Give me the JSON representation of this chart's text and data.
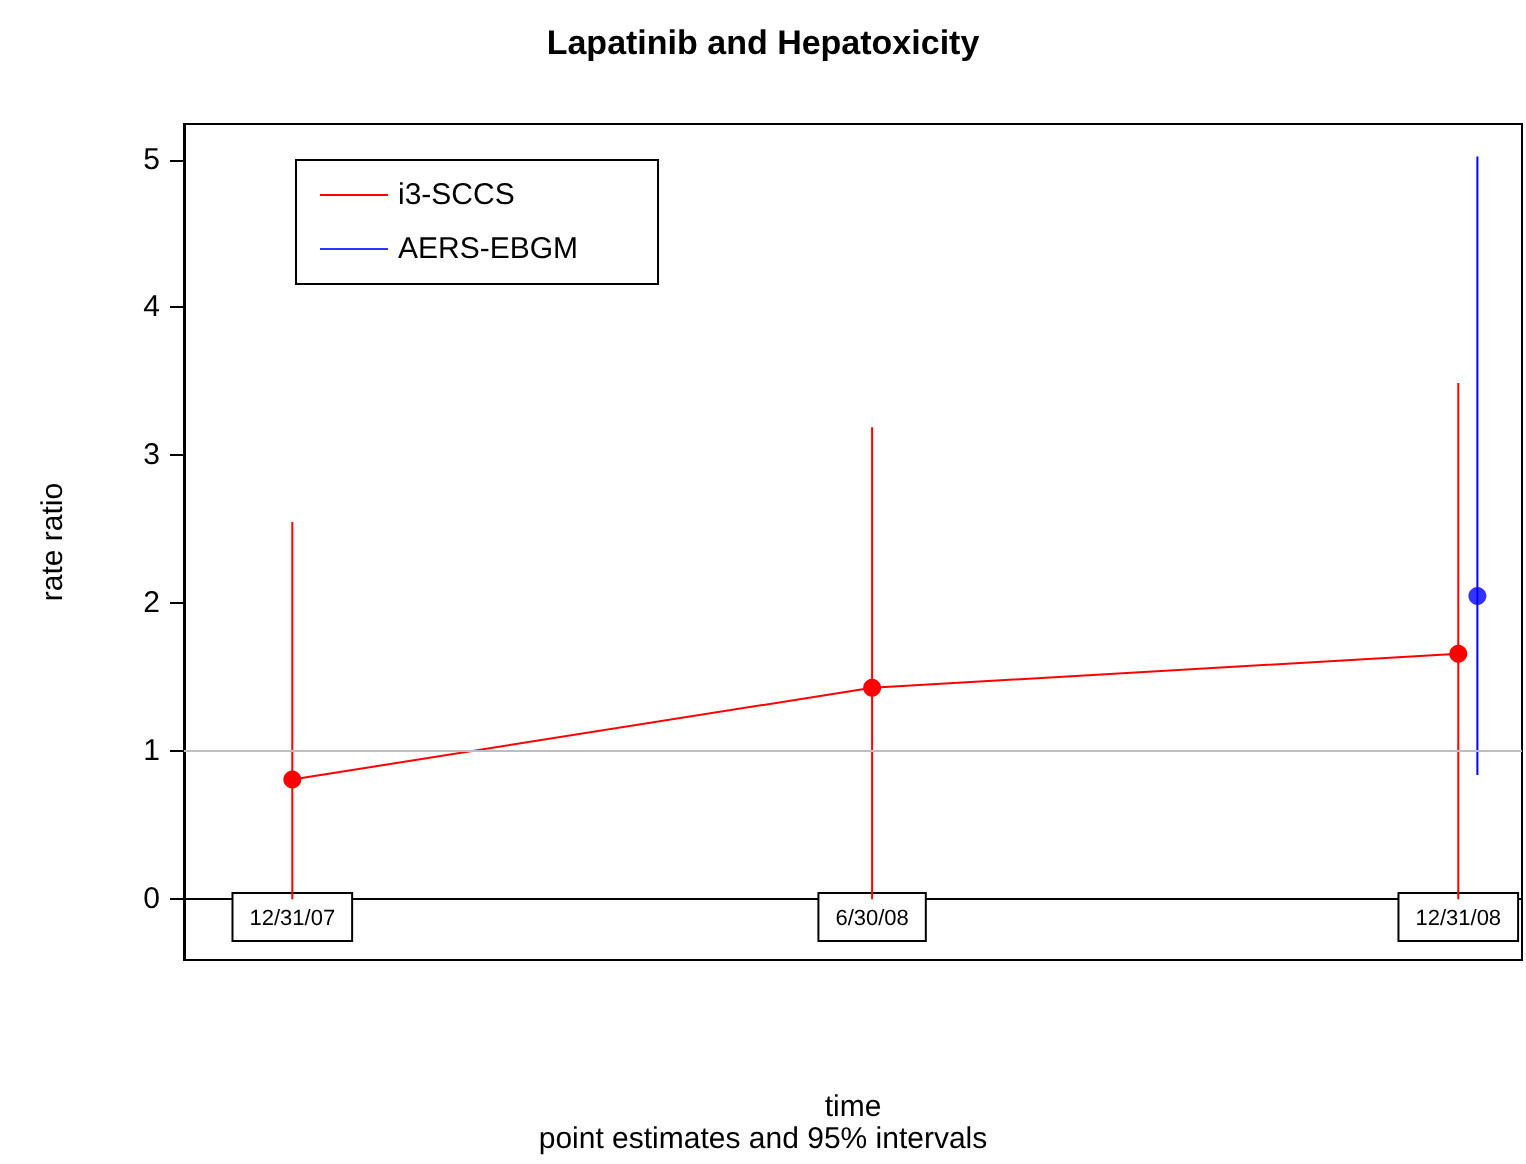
{
  "chart_data": {
    "type": "line",
    "title": "Lapatinib and Hepatoxicity",
    "xlabel": "time",
    "ylabel": "rate ratio",
    "annotations": [
      "point estimates and 95% intervals"
    ],
    "series": [
      {
        "name": "i3-SCCS",
        "color": "#ff0000",
        "x": [
          "2007-12-31",
          "2008-06-30",
          "2008-12-31"
        ],
        "values": [
          0.81,
          1.43,
          1.66
        ],
        "errors": [
          [
            0,
            2.55
          ],
          [
            0,
            3.19
          ],
          [
            0,
            3.49
          ]
        ]
      },
      {
        "name": "AERS-EBGM",
        "color": "#0000ff",
        "type": "scatter",
        "x": [
          "2009-01-06"
        ],
        "values": [
          2.05
        ],
        "errors": [
          [
            0.84,
            5.02
          ]
        ]
      }
    ],
    "xlim": [
      "2007-11-27",
      "2009-01-20"
    ],
    "xticks": [
      {
        "value": "2007-12-31",
        "label": "12/31/07"
      },
      {
        "value": "2008-06-30",
        "label": "6/30/08"
      },
      {
        "value": "2008-12-31",
        "label": "12/31/08"
      }
    ],
    "ylim": [
      -0.41,
      5.24
    ],
    "yticks": [
      0,
      1,
      2,
      3,
      4,
      5
    ],
    "ref_lines": [
      {
        "axis": "y",
        "value": 1,
        "color": "#bebebe"
      }
    ],
    "marker": "circle",
    "grid": false,
    "legend": "top left"
  }
}
